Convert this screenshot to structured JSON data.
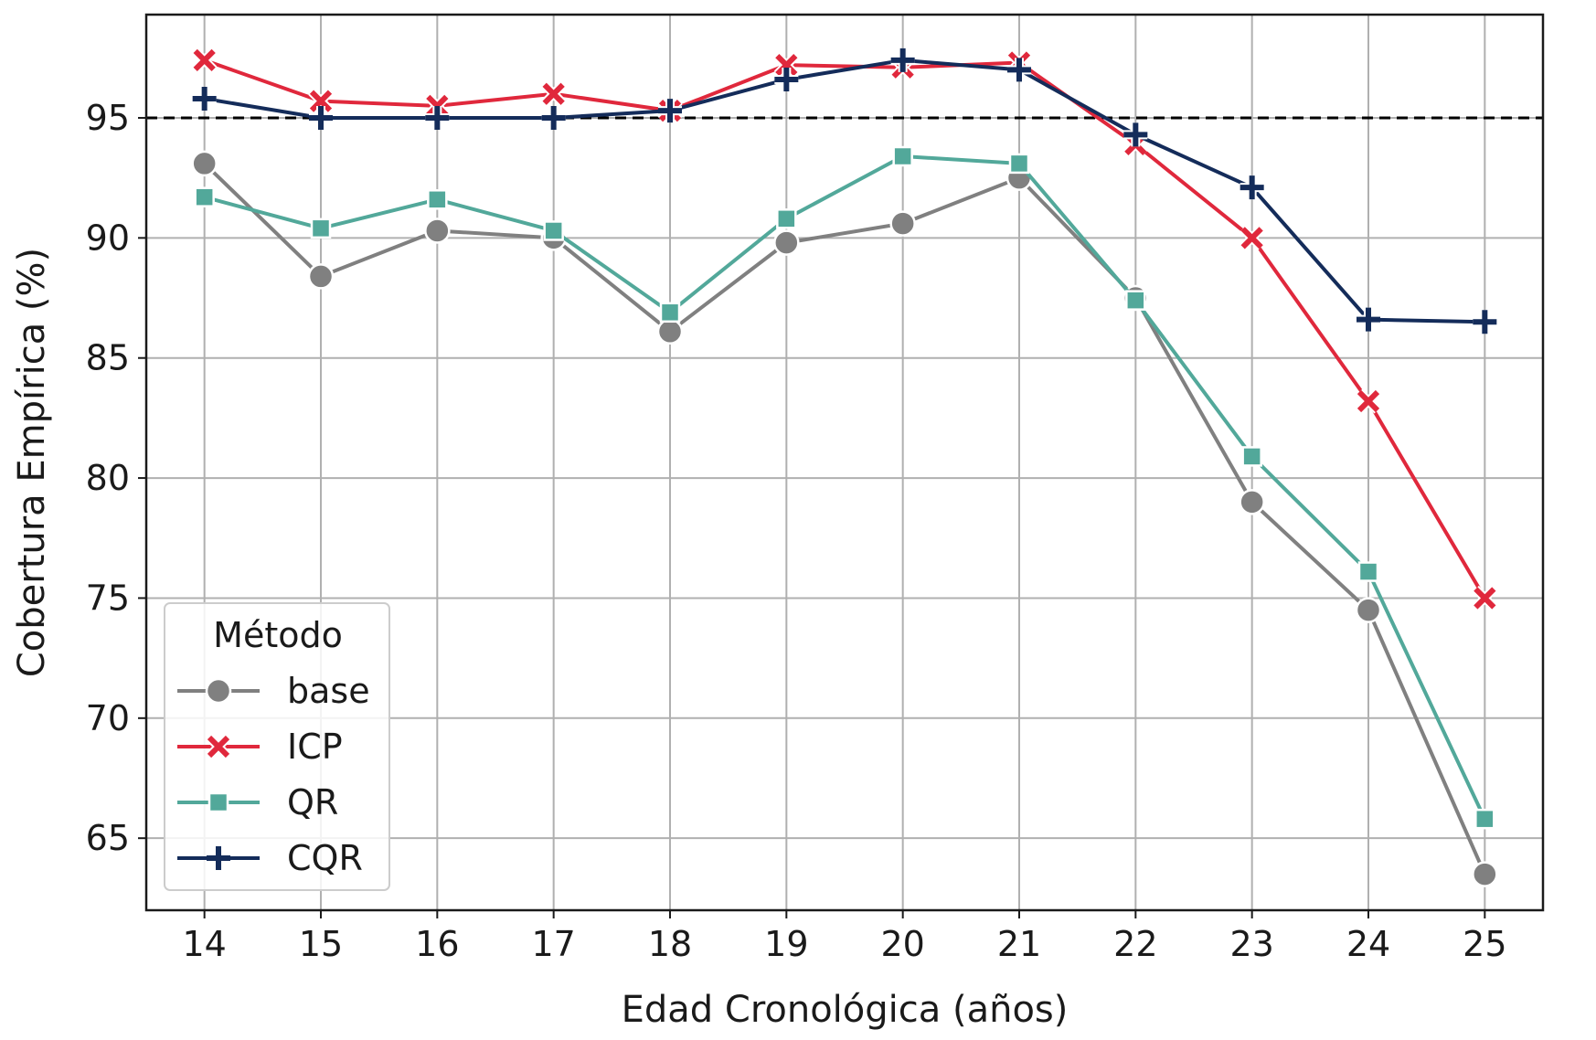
{
  "chart_data": {
    "type": "line",
    "xlabel": "Edad Cronológica (años)",
    "ylabel": "Cobertura Empírica (%)",
    "x": [
      14,
      15,
      16,
      17,
      18,
      19,
      20,
      21,
      22,
      23,
      24,
      25
    ],
    "xlim": [
      13.5,
      25.5
    ],
    "ylim": [
      62.0,
      99.3
    ],
    "xticks": [
      "14",
      "15",
      "16",
      "17",
      "18",
      "19",
      "20",
      "21",
      "22",
      "23",
      "24",
      "25"
    ],
    "yticks": [
      "65",
      "70",
      "75",
      "80",
      "85",
      "90",
      "95"
    ],
    "grid": true,
    "reference_line": {
      "y": 95,
      "style": "dashed",
      "color": "#000000"
    },
    "legend": {
      "title": "Método",
      "position": "lower-left"
    },
    "series": [
      {
        "name": "base",
        "color": "#808080",
        "marker": "circle",
        "values": [
          93.1,
          88.4,
          90.3,
          90.0,
          86.1,
          89.8,
          90.6,
          92.5,
          87.5,
          79.0,
          74.5,
          63.5
        ]
      },
      {
        "name": "ICP",
        "color": "#e0283c",
        "marker": "x",
        "values": [
          97.4,
          95.7,
          95.5,
          96.0,
          95.3,
          97.2,
          97.1,
          97.3,
          93.9,
          90.0,
          83.2,
          75.0
        ]
      },
      {
        "name": "QR",
        "color": "#52a89a",
        "marker": "square",
        "values": [
          91.7,
          90.4,
          91.6,
          90.3,
          86.9,
          90.8,
          93.4,
          93.1,
          87.4,
          80.9,
          76.1,
          65.8
        ]
      },
      {
        "name": "CQR",
        "color": "#142c5a",
        "marker": "plus",
        "values": [
          95.8,
          95.0,
          95.0,
          95.0,
          95.3,
          96.6,
          97.4,
          97.0,
          94.3,
          92.1,
          86.6,
          86.5
        ]
      }
    ]
  }
}
